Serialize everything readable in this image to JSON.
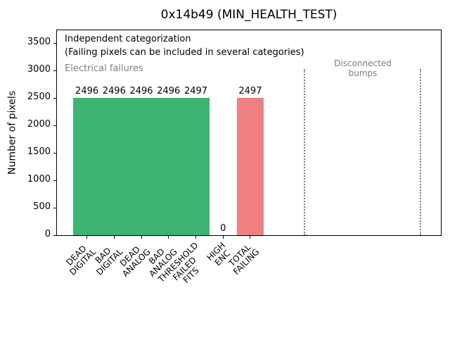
{
  "figure": {
    "background": "#ffffff"
  },
  "chart_data": {
    "type": "bar",
    "title": "0x14b49 (MIN_HEALTH_TEST)",
    "xlabel": "",
    "ylabel": "Number of pixels",
    "categories": [
      "DEAD\nDIGITAL",
      "BAD\nDIGITAL",
      "DEAD\nANALOG",
      "BAD\nANALOG",
      "THRESHOLD\nFAILED\nFITS",
      "HIGH\nENC",
      "TOTAL\nFAILING"
    ],
    "values": [
      2496,
      2496,
      2496,
      2496,
      2497,
      0,
      2497
    ],
    "value_labels": [
      "2496",
      "2496",
      "2496",
      "2496",
      "2497",
      "0",
      "2497"
    ],
    "bar_colors": [
      "#3cb371",
      "#3cb371",
      "#3cb371",
      "#3cb371",
      "#3cb371",
      "#3cb371",
      "#f08080"
    ],
    "bar_width": 1.0,
    "xlim": [
      -1.1,
      13.0
    ],
    "ylim": [
      0,
      3730
    ],
    "yticks": [
      0,
      500,
      1000,
      1500,
      2000,
      2500,
      3000,
      3500
    ],
    "grid": false,
    "legend": "none",
    "annotations": {
      "independent_line1": "Independent categorization",
      "independent_line2": "(Failing pixels can be included in several categories)",
      "electrical_failures": "Electrical failures",
      "disconnected_bumps_lines": [
        "Disconnected",
        "bumps"
      ],
      "gray_text_color": "#808080"
    },
    "guide_lines": {
      "x": [
        8.0,
        12.25
      ],
      "top_value": 3030,
      "style": "dotted",
      "color": "#7f7f7f"
    }
  }
}
